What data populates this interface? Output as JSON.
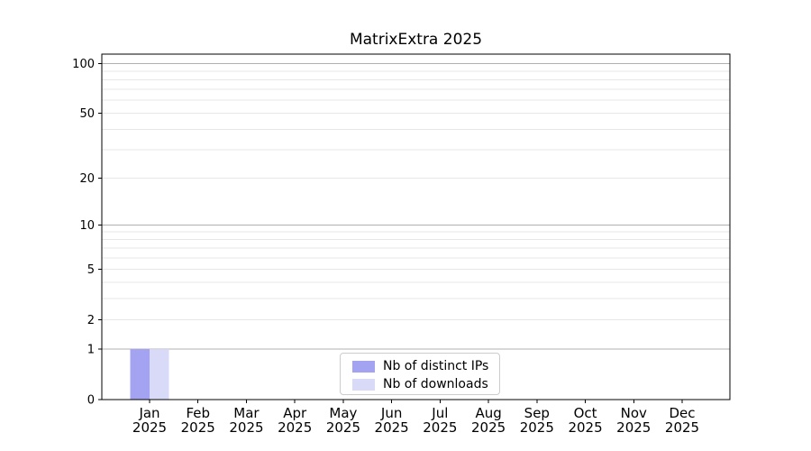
{
  "chart_data": {
    "type": "bar",
    "title": "MatrixExtra 2025",
    "categories": [
      "Jan",
      "Feb",
      "Mar",
      "Apr",
      "May",
      "Jun",
      "Jul",
      "Aug",
      "Sep",
      "Oct",
      "Nov",
      "Dec"
    ],
    "category_year_label": "2025",
    "series": [
      {
        "name": "Nb of distinct IPs",
        "color": "#a3a3f2",
        "values": [
          1,
          0,
          0,
          0,
          0,
          0,
          0,
          0,
          0,
          0,
          0,
          0
        ]
      },
      {
        "name": "Nb of downloads",
        "color": "#d9d9f8",
        "values": [
          1,
          0,
          0,
          0,
          0,
          0,
          0,
          0,
          0,
          0,
          0,
          0
        ]
      }
    ],
    "y_scale": "log1p",
    "ylim": [
      0,
      100
    ],
    "y_ticks": [
      0,
      1,
      2,
      5,
      10,
      20,
      50,
      100
    ],
    "y_major_gridlines": [
      1,
      10,
      100
    ],
    "y_minor_gridlines": [
      2,
      3,
      4,
      5,
      6,
      7,
      8,
      9,
      20,
      30,
      40,
      50,
      60,
      70,
      80,
      90
    ],
    "legend_position": "lower center",
    "grid": true,
    "colors": {
      "axis": "#000000",
      "major_grid": "#b0b0b0",
      "minor_grid": "#e7e7e7",
      "background": "#ffffff",
      "legend_border": "#cccccc"
    }
  }
}
